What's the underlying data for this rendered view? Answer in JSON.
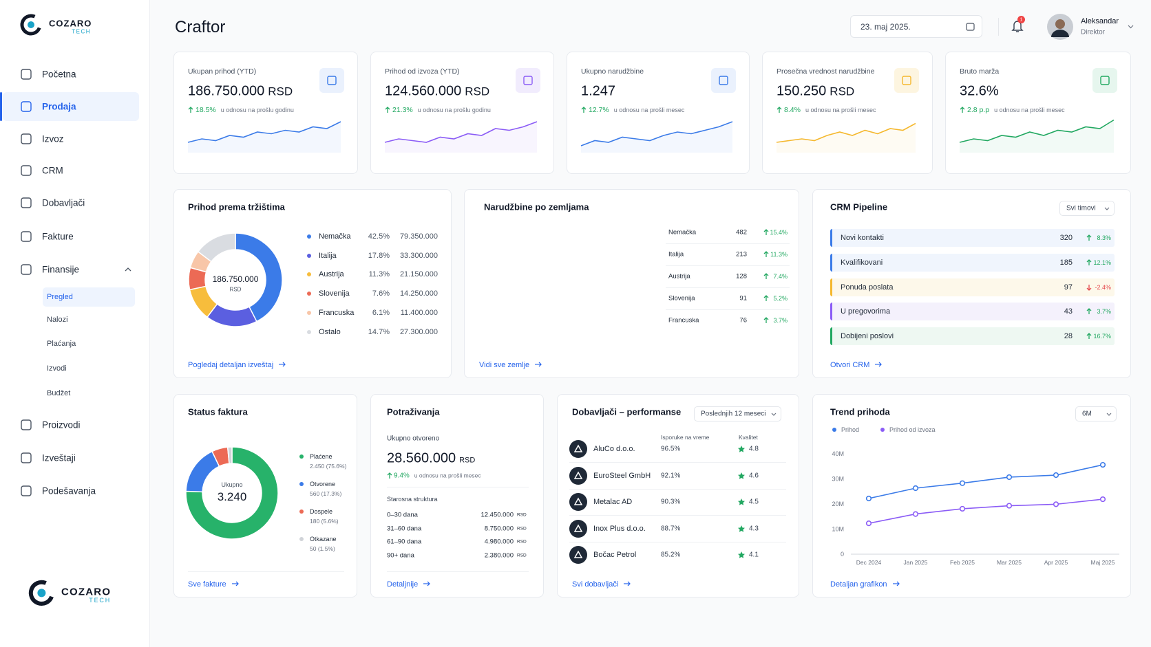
{
  "brand": {
    "name": "COZARO",
    "sub": "TECH"
  },
  "nav": {
    "main": [
      "Početna",
      "Prodaja",
      "Izvoz",
      "CRM",
      "Dobavljači",
      "Fakture",
      "Finansije"
    ],
    "sub": [
      "Pregled",
      "Nalozi",
      "Plaćanja",
      "Izvodi",
      "Budžet"
    ],
    "more": [
      "Proizvodi",
      "Izveštaji",
      "Podešavanja"
    ]
  },
  "header": {
    "title": "Craftor",
    "date": "23. maj 2025.",
    "notifications": "1",
    "user": {
      "name": "Aleksandar",
      "role": "Direktor"
    }
  },
  "kpis": [
    {
      "label": "Ukupan prihod (YTD)",
      "value": "186.750.000",
      "unit": "RSD",
      "change": "18.5%",
      "note": "u odnosu na prošlu godinu",
      "color": "#3b7be8",
      "spark": [
        3,
        4,
        3.5,
        5,
        4.5,
        6,
        5.5,
        6.5,
        6,
        7.5,
        7,
        9
      ]
    },
    {
      "label": "Prihod od izvoza (YTD)",
      "value": "124.560.000",
      "unit": "RSD",
      "change": "21.3%",
      "note": "u odnosu na prošlu godinu",
      "color": "#8b5cf6",
      "spark": [
        3,
        4,
        3.5,
        3,
        4.5,
        4,
        5.5,
        5,
        7,
        6.5,
        7.5,
        9
      ]
    },
    {
      "label": "Ukupno narudžbine",
      "value": "1.247",
      "change": "12.7%",
      "note": "u odnosu na prošli mesec",
      "color": "#3b7be8",
      "spark": [
        2,
        3.5,
        3,
        4.5,
        4,
        3.5,
        5,
        6,
        5.5,
        6.5,
        7.5,
        9
      ]
    },
    {
      "label": "Prosečna vrednost narudžbine",
      "value": "150.250",
      "unit": "RSD",
      "change": "8.4%",
      "note": "u odnosu na prošli mesec",
      "color": "#f5b82e",
      "spark": [
        3,
        3.5,
        4,
        3.5,
        5,
        6,
        5,
        6.5,
        5.5,
        7,
        6.5,
        8.5
      ]
    },
    {
      "label": "Bruto marža",
      "value": "32.6%",
      "change": "2.8 p.p",
      "note": "u odnosu na prošli mesec",
      "color": "#22a861",
      "spark": [
        3,
        4,
        3.5,
        5,
        4.5,
        6,
        5,
        6.5,
        6,
        7.5,
        7,
        9.5
      ]
    }
  ],
  "markets": {
    "title": "Prihod prema tržištima",
    "center_value": "186.750.000",
    "center_unit": "RSD",
    "link": "Pogledaj detaljan izveštaj",
    "items": [
      {
        "name": "Nemačka",
        "share": "42.5%",
        "amount": "79.350.000",
        "color": "#3b7be8"
      },
      {
        "name": "Italija",
        "share": "17.8%",
        "amount": "33.300.000",
        "color": "#5b5fe0"
      },
      {
        "name": "Austrija",
        "share": "11.3%",
        "amount": "21.150.000",
        "color": "#f7bd3c"
      },
      {
        "name": "Slovenija",
        "share": "7.6%",
        "amount": "14.250.000",
        "color": "#ec6a55"
      },
      {
        "name": "Francuska",
        "share": "6.1%",
        "amount": "11.400.000",
        "color": "#f8c6a8"
      },
      {
        "name": "Ostalo",
        "share": "14.7%",
        "amount": "27.300.000",
        "color": "#d9dce1"
      }
    ]
  },
  "orders": {
    "title": "Narudžbine po zemljama",
    "link": "Vidi sve zemlje",
    "rows": [
      {
        "name": "Nemačka",
        "count": "482",
        "change": "15.4%"
      },
      {
        "name": "Italija",
        "count": "213",
        "change": "11.3%"
      },
      {
        "name": "Austrija",
        "count": "128",
        "change": "7.4%"
      },
      {
        "name": "Slovenija",
        "count": "91",
        "change": "5.2%"
      },
      {
        "name": "Francuska",
        "count": "76",
        "change": "3.7%"
      }
    ]
  },
  "crm": {
    "title": "CRM Pipeline",
    "filter": "Svi timovi",
    "link": "Otvori CRM",
    "rows": [
      {
        "name": "Novi kontakti",
        "count": "320",
        "change": "8.3%",
        "color": "#3b7be8"
      },
      {
        "name": "Kvalifikovani",
        "count": "185",
        "change": "12.1%",
        "color": "#3b7be8"
      },
      {
        "name": "Ponuda poslata",
        "count": "97",
        "change": "-2.4%",
        "color": "#f5b82e"
      },
      {
        "name": "U pregovorima",
        "count": "43",
        "change": "3.7%",
        "color": "#8b5cf6"
      },
      {
        "name": "Dobijeni poslovi",
        "count": "28",
        "change": "16.7%",
        "color": "#22a861"
      }
    ]
  },
  "invoices": {
    "title": "Status faktura",
    "center_label": "Ukupno",
    "center_value": "3.240",
    "link": "Sve fakture",
    "items": [
      {
        "name": "Plaćene",
        "detail": "2.450 (75.6%)",
        "color": "#27b26a"
      },
      {
        "name": "Otvorene",
        "detail": "560 (17.3%)",
        "color": "#3b7be8"
      },
      {
        "name": "Dospele",
        "detail": "180 (5.6%)",
        "color": "#ec6a55"
      },
      {
        "name": "Otkazane",
        "detail": "50 (1.5%)",
        "color": "#d0d3d8"
      }
    ]
  },
  "receivables": {
    "title": "Potraživanja",
    "label": "Ukupno otvoreno",
    "value": "28.560.000",
    "unit": "RSD",
    "change": "9.4%",
    "note": "u odnosu na prošli mesec",
    "aging_title": "Starosna struktura",
    "link": "Detaljnije",
    "rows": [
      {
        "label": "0–30 dana",
        "amount": "12.450.000",
        "unit": "RSD"
      },
      {
        "label": "31–60 dana",
        "amount": "8.750.000",
        "unit": "RSD"
      },
      {
        "label": "61–90 dana",
        "amount": "4.980.000",
        "unit": "RSD"
      },
      {
        "label": "90+ dana",
        "amount": "2.380.000",
        "unit": "RSD"
      }
    ]
  },
  "suppliers": {
    "title": "Dobavljači – performanse",
    "filter": "Poslednjih 12 meseci",
    "columns": [
      "Isporuke na vreme",
      "Kvalitet"
    ],
    "link": "Svi dobavljači",
    "rows": [
      {
        "name": "AluCo d.o.o.",
        "on_time": "96.5%",
        "quality": "4.8"
      },
      {
        "name": "EuroSteel GmbH",
        "on_time": "92.1%",
        "quality": "4.6"
      },
      {
        "name": "Metalac AD",
        "on_time": "90.3%",
        "quality": "4.5"
      },
      {
        "name": "Inox Plus d.o.o.",
        "on_time": "88.7%",
        "quality": "4.3"
      },
      {
        "name": "Bočac Petrol",
        "on_time": "85.2%",
        "quality": "4.1"
      }
    ]
  },
  "trend": {
    "title": "Trend prihoda",
    "period": "6M",
    "link": "Detaljan grafikon",
    "chart_data": {
      "type": "line",
      "x": [
        "Dec 2024",
        "Jan 2025",
        "Feb 2025",
        "Mar 2025",
        "Apr 2025",
        "Maj 2025"
      ],
      "ylim": [
        0,
        40
      ],
      "yticks": [
        0,
        {
          "value": 10,
          "label": "10M"
        },
        {
          "value": 20,
          "label": "20M"
        },
        {
          "value": 30,
          "label": "30M"
        },
        {
          "value": 40,
          "label": "40M"
        }
      ],
      "series": [
        {
          "name": "Prihod",
          "color": "#3b7be8",
          "values": [
            22.2,
            26.3,
            28.3,
            30.7,
            31.5,
            35.6
          ]
        },
        {
          "name": "Prihod od izvoza",
          "color": "#8b5cf6",
          "values": [
            12.3,
            16,
            18.1,
            19.3,
            19.9,
            21.9
          ]
        }
      ]
    }
  }
}
